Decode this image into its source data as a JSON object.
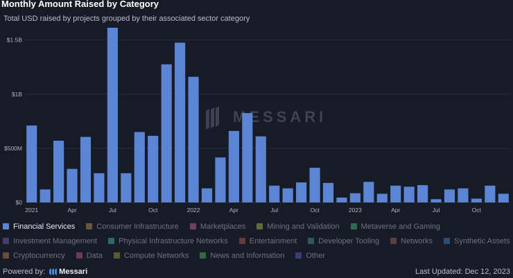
{
  "header": {
    "title": "Monthly Amount Raised by Category",
    "subtitle": "Total USD raised by projects grouped by their associated sector category"
  },
  "watermark": {
    "text": "MESSARI"
  },
  "chart_data": {
    "type": "bar",
    "title": "Monthly Amount Raised by Category",
    "subtitle": "Total USD raised by projects grouped by their associated sector category",
    "xlabel": "",
    "ylabel": "",
    "ylim": [
      0,
      1600000000
    ],
    "yticks": [
      {
        "value": 0,
        "label": "$0"
      },
      {
        "value": 500000000,
        "label": "$500M"
      },
      {
        "value": 1000000000,
        "label": "$1B"
      },
      {
        "value": 1500000000,
        "label": "$1.5B"
      }
    ],
    "grid": true,
    "xticks": [
      {
        "index": 0,
        "label": "2021"
      },
      {
        "index": 3,
        "label": "Apr"
      },
      {
        "index": 6,
        "label": "Jul"
      },
      {
        "index": 9,
        "label": "Oct"
      },
      {
        "index": 12,
        "label": "2022"
      },
      {
        "index": 15,
        "label": "Apr"
      },
      {
        "index": 18,
        "label": "Jul"
      },
      {
        "index": 21,
        "label": "Oct"
      },
      {
        "index": 24,
        "label": "2023"
      },
      {
        "index": 27,
        "label": "Apr"
      },
      {
        "index": 30,
        "label": "Jul"
      },
      {
        "index": 33,
        "label": "Oct"
      }
    ],
    "categories": [
      "2021-01",
      "2021-02",
      "2021-03",
      "2021-04",
      "2021-05",
      "2021-06",
      "2021-07",
      "2021-08",
      "2021-09",
      "2021-10",
      "2021-11",
      "2021-12",
      "2022-01",
      "2022-02",
      "2022-03",
      "2022-04",
      "2022-05",
      "2022-06",
      "2022-07",
      "2022-08",
      "2022-09",
      "2022-10",
      "2022-11",
      "2022-12",
      "2023-01",
      "2023-02",
      "2023-03",
      "2023-04",
      "2023-05",
      "2023-06",
      "2023-07",
      "2023-08",
      "2023-09",
      "2023-10",
      "2023-11",
      "2023-12"
    ],
    "series": [
      {
        "name": "Financial Services",
        "color": "#5b84d4",
        "values": [
          710000000,
          120000000,
          570000000,
          310000000,
          605000000,
          270000000,
          1660000000,
          270000000,
          650000000,
          615000000,
          1275000000,
          1475000000,
          1160000000,
          130000000,
          415000000,
          660000000,
          825000000,
          610000000,
          155000000,
          130000000,
          185000000,
          320000000,
          180000000,
          45000000,
          85000000,
          190000000,
          80000000,
          155000000,
          145000000,
          160000000,
          30000000,
          120000000,
          130000000,
          35000000,
          155000000,
          80000000
        ]
      }
    ],
    "legend_position": "bottom"
  },
  "legend": {
    "rows": [
      [
        {
          "label": "Financial Services",
          "color": "#5b84d4",
          "active": true
        },
        {
          "label": "Consumer Infrastructure",
          "color": "#6b5540",
          "active": false
        },
        {
          "label": "Marketplaces",
          "color": "#6b3f66",
          "active": false
        },
        {
          "label": "Mining and Validation",
          "color": "#5f6a3a",
          "active": false
        },
        {
          "label": "Metaverse and Gaming",
          "color": "#2f6a50",
          "active": false
        }
      ],
      [
        {
          "label": "Investment Management",
          "color": "#463a6e",
          "active": false
        },
        {
          "label": "Physical Infrastructure Networks",
          "color": "#2c6a6a",
          "active": false
        },
        {
          "label": "Entertainment",
          "color": "#6a3a3a",
          "active": false
        },
        {
          "label": "Developer Tooling",
          "color": "#2f5a5a",
          "active": false
        },
        {
          "label": "Networks",
          "color": "#5a4040",
          "active": false
        },
        {
          "label": "Synthetic Assets",
          "color": "#2e4d76",
          "active": false
        }
      ],
      [
        {
          "label": "Cryptocurrency",
          "color": "#6a4a3a",
          "active": false
        },
        {
          "label": "Data",
          "color": "#6a3a5a",
          "active": false
        },
        {
          "label": "Compute Networks",
          "color": "#5a5a2f",
          "active": false
        },
        {
          "label": "News and Information",
          "color": "#2f6a45",
          "active": false
        },
        {
          "label": "Other",
          "color": "#3a3a7a",
          "active": false
        }
      ]
    ]
  },
  "footer": {
    "powered_by": "Powered by:",
    "brand": "Messari",
    "last_updated": "Last Updated: Dec 12, 2023"
  }
}
